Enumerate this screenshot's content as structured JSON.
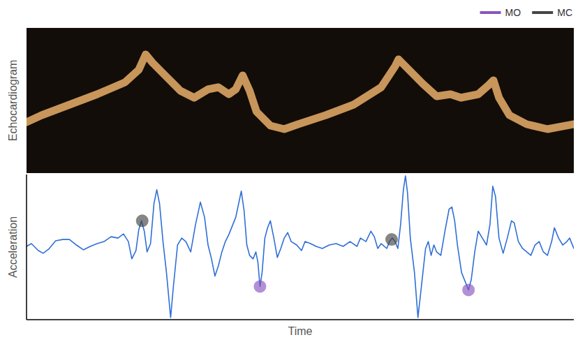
{
  "chart_data": [
    {
      "type": "line",
      "y_label": "Echocardiogram",
      "color": "#c8955a",
      "tick_labels": false,
      "xlim": [
        0,
        790
      ],
      "ylim": [
        0,
        208
      ],
      "x": [
        0,
        22,
        62,
        102,
        142,
        162,
        172,
        182,
        202,
        222,
        242,
        262,
        277,
        292,
        302,
        312,
        322,
        332,
        352,
        372,
        392,
        432,
        472,
        512,
        532,
        537,
        552,
        572,
        592,
        612,
        627,
        652,
        667,
        674,
        682,
        697,
        722,
        752,
        790
      ],
      "values": [
        73,
        83,
        98,
        113,
        130,
        148,
        170,
        158,
        138,
        118,
        108,
        120,
        123,
        113,
        120,
        140,
        118,
        88,
        68,
        63,
        70,
        83,
        98,
        123,
        153,
        163,
        148,
        128,
        110,
        113,
        108,
        113,
        126,
        133,
        108,
        83,
        70,
        63,
        70
      ]
    },
    {
      "type": "line",
      "y_label": "Acceleration",
      "x_label": "Time",
      "color": "#2f6fd6",
      "tick_labels": false,
      "xlim": [
        0,
        790
      ],
      "ylim": [
        0,
        210
      ],
      "legend": "upper right",
      "x": [
        0,
        7,
        17,
        24,
        32,
        42,
        52,
        62,
        72,
        82,
        92,
        102,
        112,
        122,
        132,
        140,
        147,
        152,
        158,
        162,
        166,
        170,
        174,
        179,
        184,
        188,
        192,
        197,
        202,
        208,
        212,
        218,
        224,
        230,
        237,
        244,
        251,
        257,
        262,
        267,
        272,
        277,
        282,
        287,
        292,
        302,
        310,
        314,
        318,
        322,
        327,
        331,
        334,
        337,
        340,
        344,
        348,
        352,
        357,
        362,
        367,
        372,
        377,
        382,
        390,
        397,
        402,
        410,
        418,
        427,
        437,
        447,
        457,
        467,
        477,
        482,
        490,
        497,
        502,
        507,
        512,
        520,
        524,
        528,
        532,
        536,
        540,
        544,
        547,
        550,
        554,
        560,
        565,
        570,
        576,
        580,
        584,
        588,
        592,
        598,
        604,
        610,
        614,
        618,
        622,
        628,
        634,
        638,
        642,
        647,
        652,
        658,
        664,
        669,
        673,
        677,
        682,
        688,
        694,
        700,
        704,
        710,
        716,
        722,
        728,
        734,
        740,
        746,
        752,
        758,
        762,
        768,
        774,
        780,
        784,
        790
      ],
      "values": [
        106,
        110,
        100,
        96,
        102,
        114,
        116,
        116,
        108,
        101,
        106,
        110,
        113,
        120,
        118,
        124,
        113,
        88,
        100,
        130,
        143,
        128,
        98,
        110,
        168,
        188,
        168,
        113,
        68,
        3,
        48,
        108,
        118,
        113,
        98,
        138,
        170,
        148,
        108,
        88,
        63,
        78,
        98,
        113,
        123,
        148,
        186,
        158,
        108,
        93,
        88,
        98,
        83,
        48,
        68,
        118,
        133,
        143,
        118,
        90,
        103,
        118,
        126,
        113,
        108,
        100,
        113,
        110,
        106,
        103,
        108,
        110,
        106,
        113,
        106,
        118,
        113,
        128,
        120,
        103,
        110,
        103,
        113,
        118,
        113,
        103,
        138,
        188,
        208,
        183,
        118,
        68,
        3,
        48,
        103,
        113,
        93,
        108,
        98,
        93,
        128,
        160,
        163,
        143,
        108,
        68,
        53,
        43,
        58,
        98,
        128,
        118,
        108,
        138,
        193,
        178,
        118,
        96,
        118,
        143,
        140,
        113,
        103,
        98,
        93,
        108,
        113,
        98,
        93,
        113,
        133,
        118,
        108,
        113,
        118,
        103
      ],
      "series": [
        {
          "name": "MO",
          "type": "scatter",
          "marker": "circle",
          "color": "#8a55c0",
          "x": [
            337,
            638
          ],
          "values": [
            48,
            43
          ]
        },
        {
          "name": "MC",
          "type": "scatter",
          "marker": "circle",
          "color": "#444444",
          "x": [
            167,
            527
          ],
          "values": [
            143,
            116
          ]
        }
      ]
    }
  ]
}
